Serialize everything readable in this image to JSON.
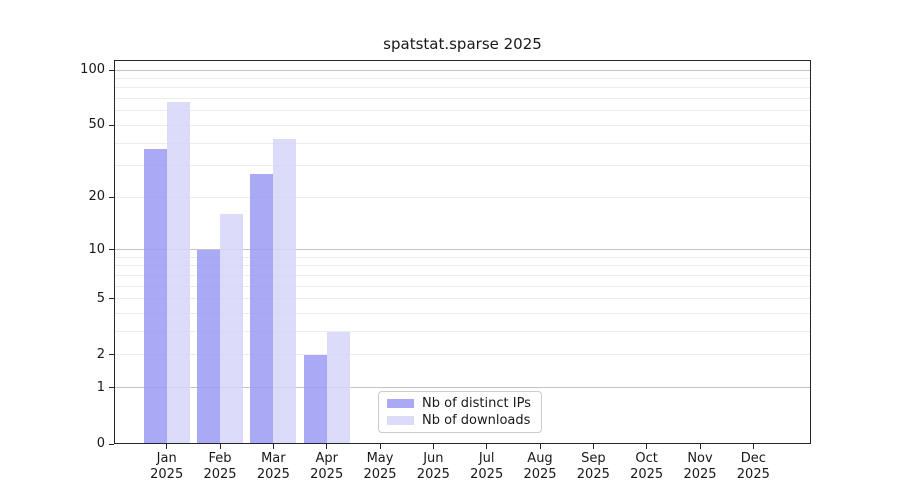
{
  "title": "spatstat.sparse 2025",
  "chart_data": {
    "type": "bar",
    "title": "spatstat.sparse 2025",
    "categories": [
      "Jan 2025",
      "Feb 2025",
      "Mar 2025",
      "Apr 2025",
      "May 2025",
      "Jun 2025",
      "Jul 2025",
      "Aug 2025",
      "Sep 2025",
      "Oct 2025",
      "Nov 2025",
      "Dec 2025"
    ],
    "series": [
      {
        "name": "Nb of distinct IPs",
        "color": "#a9a9f6",
        "fill_rgba": "rgba(154,154,244,0.85)",
        "values": [
          37,
          10,
          27,
          2,
          0,
          0,
          0,
          0,
          0,
          0,
          0,
          0
        ]
      },
      {
        "name": "Nb of downloads",
        "color": "#dcdcfa",
        "fill_rgba": "rgba(214,214,249,0.85)",
        "values": [
          67,
          16,
          42,
          3,
          0,
          0,
          0,
          0,
          0,
          0,
          0,
          0
        ]
      }
    ],
    "xlabel": "",
    "ylabel": "",
    "ylim": [
      0,
      100
    ],
    "y_scale": "log10(1+x)",
    "y_tick_labels": [
      0,
      1,
      2,
      5,
      10,
      20,
      50,
      100
    ],
    "grid": true,
    "major_gridlines": [
      1,
      10,
      100
    ],
    "minor_gridlines": [
      2,
      3,
      4,
      5,
      6,
      7,
      8,
      9,
      20,
      30,
      40,
      50,
      60,
      70,
      80,
      90
    ],
    "legend_position": "inside-bottom-center"
  },
  "colors": {
    "bar_dark": "#a9a9f6",
    "bar_light": "#dcdcfa",
    "grid_major": "#c3c3c3",
    "grid_minor": "#ececec",
    "spine": "#262626",
    "text": "#191919",
    "legend_border": "#cccccc"
  }
}
